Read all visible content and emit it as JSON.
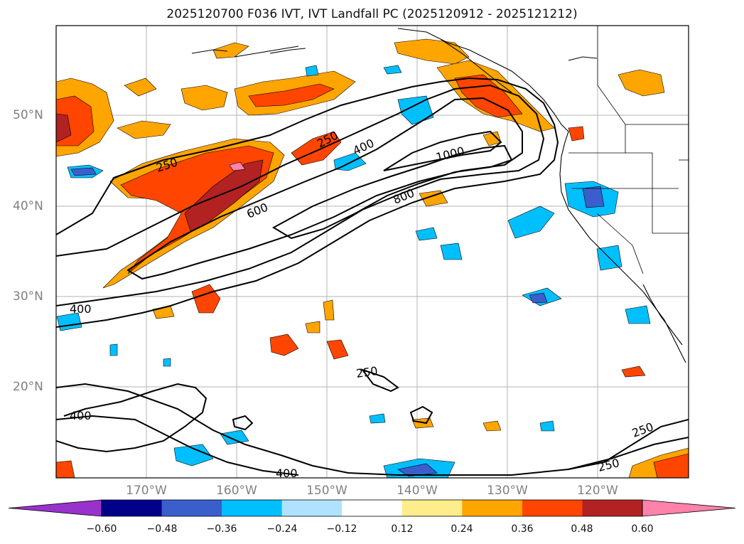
{
  "title": "2025120700 F036 IVT, IVT Landfall PC (2025120912 - 2025121212)",
  "map": {
    "lat_labels": [
      "50°N",
      "40°N",
      "30°N",
      "20°N"
    ],
    "lon_labels": [
      "170°W",
      "160°W",
      "150°W",
      "140°W",
      "130°W",
      "120°W"
    ],
    "contour_labels": [
      "250",
      "250",
      "400",
      "1000",
      "800",
      "600",
      "400",
      "400",
      "250",
      "250",
      "250",
      "400"
    ]
  },
  "colorbar": {
    "ticks": [
      "−0.60",
      "−0.48",
      "−0.36",
      "−0.24",
      "−0.12",
      "0.12",
      "0.24",
      "0.36",
      "0.48",
      "0.60"
    ],
    "colors": [
      "#9932CC",
      "#00008B",
      "#3A5FCD",
      "#00BFFF",
      "#B0E2FF",
      "#FFFFFF",
      "#FFEC8B",
      "#FFA500",
      "#FF4500",
      "#B22222",
      "#FF82AB"
    ]
  }
}
